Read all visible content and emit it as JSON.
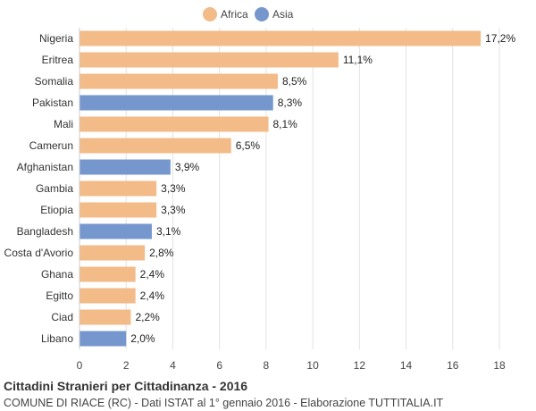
{
  "chart_data": {
    "type": "bar",
    "orientation": "horizontal",
    "title": "Cittadini Stranieri per Cittadinanza - 2016",
    "subtitle": "COMUNE DI RIACE (RC) - Dati ISTAT al 1° gennaio 2016 - Elaborazione TUTTITALIA.IT",
    "xlim": [
      0,
      18
    ],
    "xticks": [
      0,
      2,
      4,
      6,
      8,
      10,
      12,
      14,
      16,
      18
    ],
    "grid": true,
    "legend_position": "top-center",
    "series": [
      {
        "name": "Africa",
        "color": "#f2bb88"
      },
      {
        "name": "Asia",
        "color": "#7597cd"
      }
    ],
    "categories": [
      "Nigeria",
      "Eritrea",
      "Somalia",
      "Pakistan",
      "Mali",
      "Camerun",
      "Afghanistan",
      "Gambia",
      "Etiopia",
      "Bangladesh",
      "Costa d'Avorio",
      "Ghana",
      "Egitto",
      "Ciad",
      "Libano"
    ],
    "values": [
      17.2,
      11.1,
      8.5,
      8.3,
      8.1,
      6.5,
      3.9,
      3.3,
      3.3,
      3.1,
      2.8,
      2.4,
      2.4,
      2.2,
      2.0
    ],
    "labels": [
      "17,2%",
      "11,1%",
      "8,5%",
      "8,3%",
      "8,1%",
      "6,5%",
      "3,9%",
      "3,3%",
      "3,3%",
      "3,1%",
      "2,8%",
      "2,4%",
      "2,4%",
      "2,2%",
      "2,0%"
    ],
    "groups": [
      "Africa",
      "Africa",
      "Africa",
      "Asia",
      "Africa",
      "Africa",
      "Asia",
      "Africa",
      "Africa",
      "Asia",
      "Africa",
      "Africa",
      "Africa",
      "Africa",
      "Asia"
    ]
  }
}
